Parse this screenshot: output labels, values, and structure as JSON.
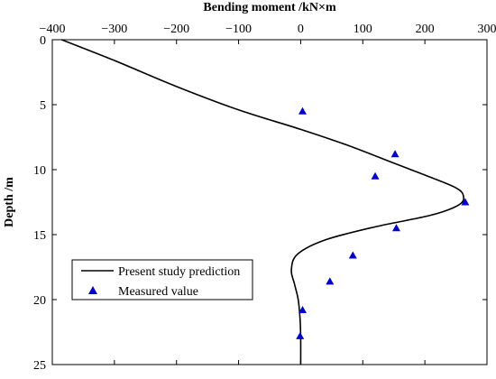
{
  "chart_data": {
    "type": "line",
    "xlabel": "Bending moment /kN×m",
    "ylabel": "Depth /m",
    "xlim": [
      -400,
      300
    ],
    "ylim": [
      0,
      25
    ],
    "y_inverted": true,
    "x_axis_position": "top",
    "xticks": [
      "-400",
      "-300",
      "-200",
      "-100",
      "0",
      "100",
      "200",
      "300"
    ],
    "yticks": [
      "0",
      "5",
      "10",
      "15",
      "20",
      "25"
    ],
    "grid": false,
    "legend_position": "bottom-left",
    "series": [
      {
        "name": "Present study prediction",
        "style": "line",
        "color": "#000000",
        "points": [
          [
            -385,
            0
          ],
          [
            -300,
            1.6
          ],
          [
            -200,
            3.6
          ],
          [
            -100,
            5.4
          ],
          [
            0,
            6.9
          ],
          [
            80,
            8.2
          ],
          [
            150,
            9.5
          ],
          [
            210,
            10.6
          ],
          [
            250,
            11.4
          ],
          [
            262,
            12.0
          ],
          [
            255,
            12.7
          ],
          [
            210,
            13.5
          ],
          [
            120,
            14.4
          ],
          [
            40,
            15.4
          ],
          [
            -5,
            16.5
          ],
          [
            -15,
            17.7
          ],
          [
            -10,
            18.8
          ],
          [
            -4,
            20.0
          ],
          [
            -1,
            21.5
          ],
          [
            0,
            23.0
          ],
          [
            0,
            25
          ]
        ]
      },
      {
        "name": "Measured value",
        "style": "marker-triangle",
        "color": "#0000cc",
        "points": [
          [
            3,
            5.5
          ],
          [
            152,
            8.8
          ],
          [
            120,
            10.5
          ],
          [
            265,
            12.5
          ],
          [
            154,
            14.5
          ],
          [
            84,
            16.6
          ],
          [
            47,
            18.6
          ],
          [
            3,
            20.8
          ],
          [
            -1,
            22.8
          ]
        ]
      }
    ]
  }
}
